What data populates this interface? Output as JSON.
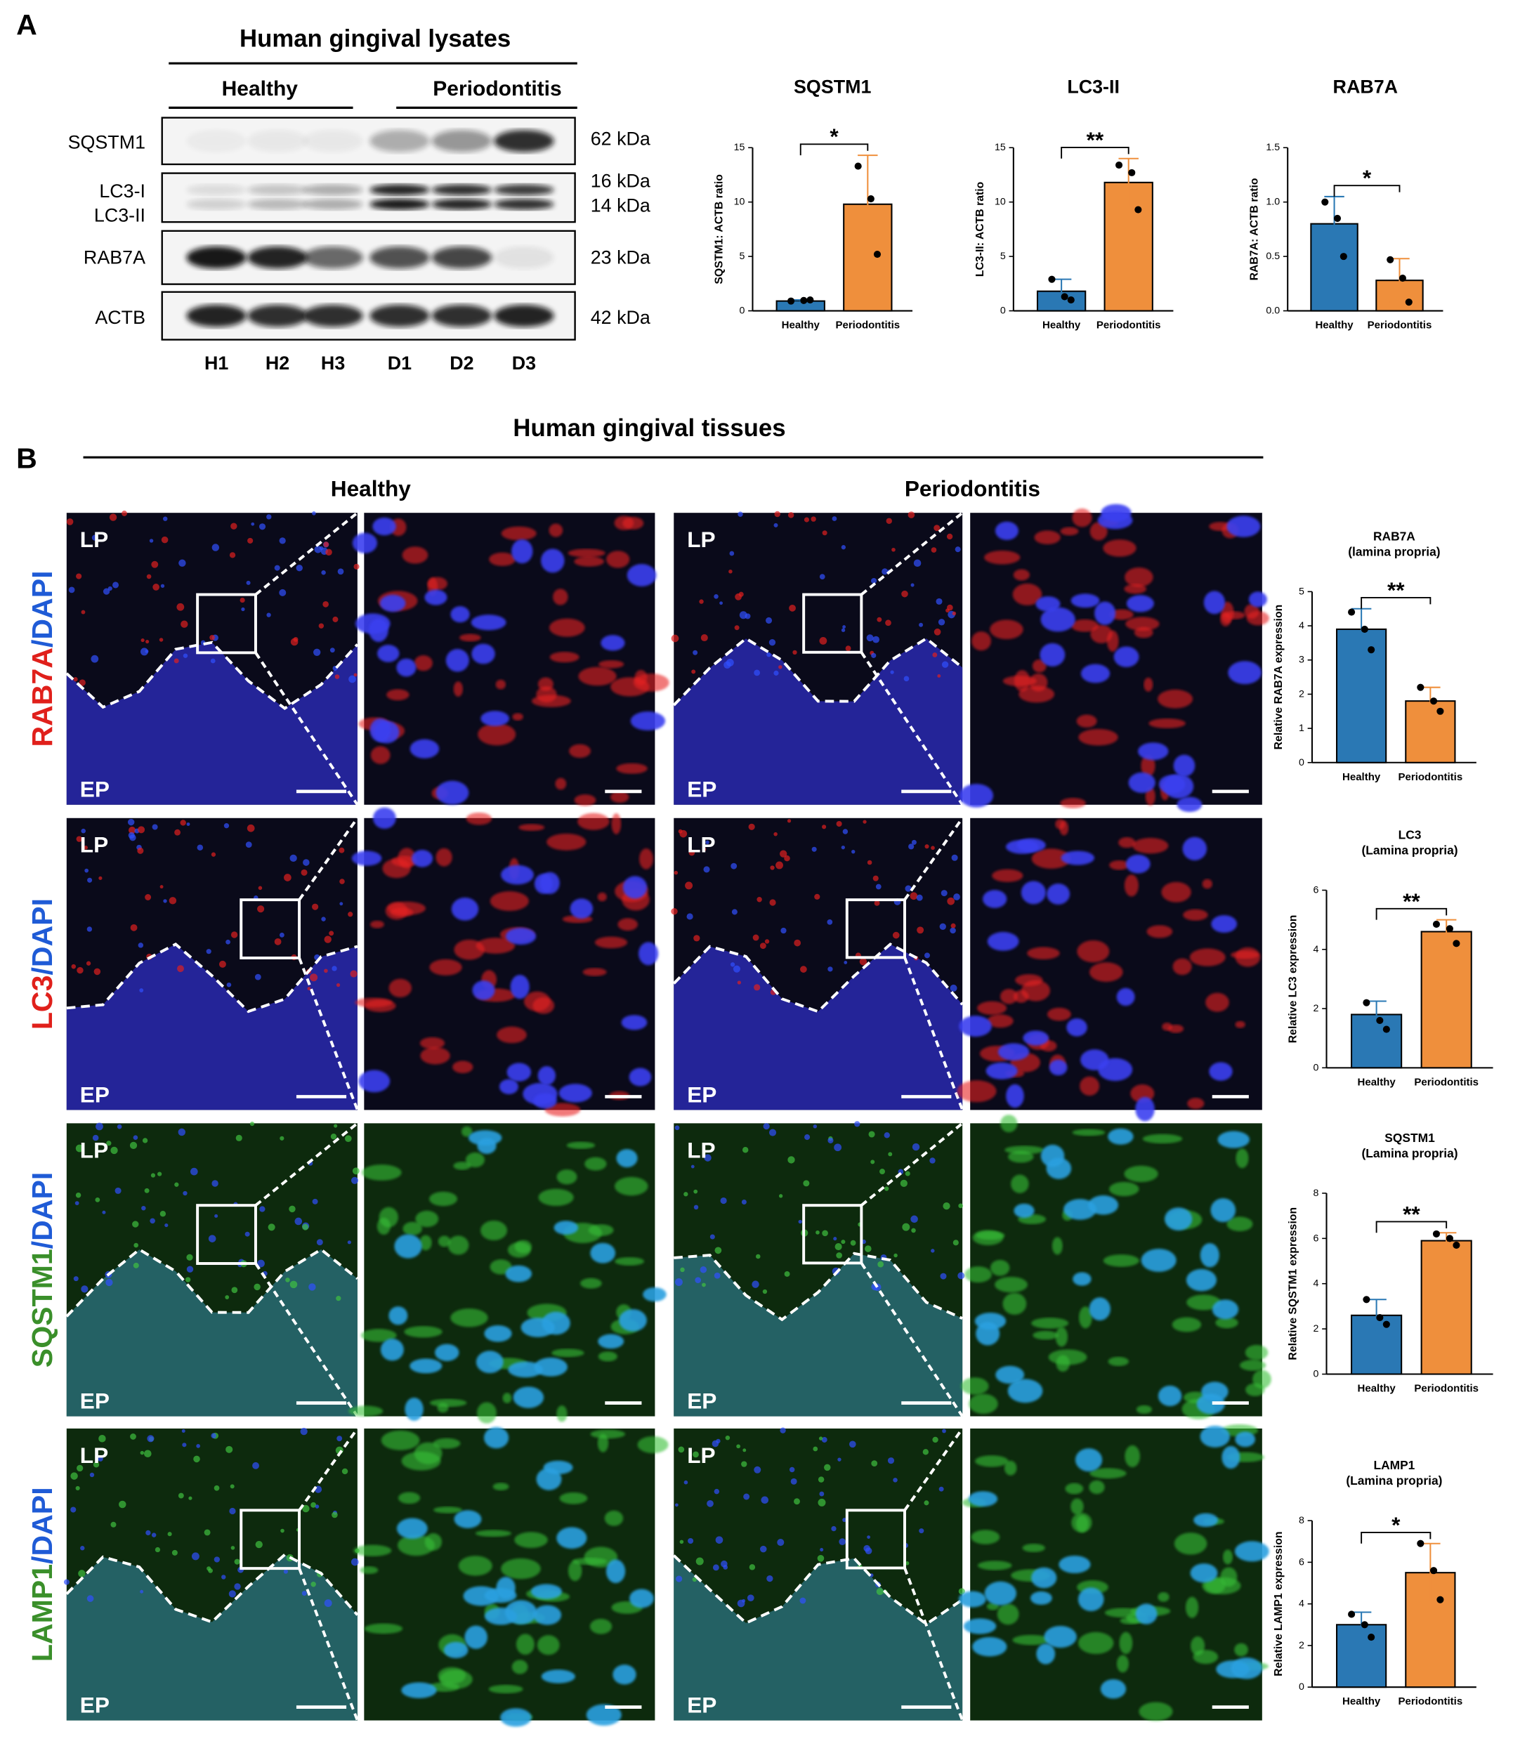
{
  "panel_a": {
    "label": "A",
    "title": "Human gingival lysates",
    "groups": [
      "Healthy",
      "Periodontitis"
    ],
    "blot_rows": [
      {
        "names": [
          "SQSTM1"
        ],
        "sizes": [
          "62 kDa"
        ]
      },
      {
        "names": [
          "LC3-I",
          "LC3-II"
        ],
        "sizes": [
          "16 kDa",
          "14 kDa"
        ]
      },
      {
        "names": [
          "RAB7A"
        ],
        "sizes": [
          "23 kDa"
        ]
      },
      {
        "names": [
          "ACTB"
        ],
        "sizes": [
          "42 kDa"
        ]
      }
    ],
    "lanes": [
      "H1",
      "H2",
      "H3",
      "D1",
      "D2",
      "D3"
    ]
  },
  "panel_b": {
    "label": "B",
    "title": "Human gingival tissues",
    "groups": [
      "Healthy",
      "Periodontitis"
    ],
    "counterstain": "/DAPI",
    "counterstain_color": "#1f5bd6",
    "regions": [
      "LP",
      "EP"
    ],
    "rows": [
      {
        "marker": "RAB7A",
        "color": "#e0201b"
      },
      {
        "marker": "LC3",
        "color": "#e0201b"
      },
      {
        "marker": "SQSTM1",
        "color": "#3a8f2a"
      },
      {
        "marker": "LAMP1",
        "color": "#3a8f2a"
      }
    ]
  },
  "chart_data": [
    {
      "type": "bar",
      "title": "SQSTM1",
      "ylabel": "SQSTM1: ACTB ratio",
      "categories": [
        "Healthy",
        "Periodontitis"
      ],
      "colors": [
        "#2a78b4",
        "#ef8f3c"
      ],
      "values": [
        0.9,
        9.8
      ],
      "errors": [
        0.1,
        4.5
      ],
      "points": [
        [
          0.9,
          0.95,
          1.0
        ],
        [
          13.3,
          10.3,
          5.2
        ]
      ],
      "ylim": [
        0,
        15
      ],
      "yticks": [
        0,
        5,
        10,
        15
      ],
      "significance": "*"
    },
    {
      "type": "bar",
      "title": "LC3-II",
      "ylabel": "LC3-II: ACTB ratio",
      "categories": [
        "Healthy",
        "Periodontitis"
      ],
      "colors": [
        "#2a78b4",
        "#ef8f3c"
      ],
      "values": [
        1.8,
        11.8
      ],
      "errors": [
        1.1,
        2.2
      ],
      "points": [
        [
          2.9,
          1.3,
          1.0
        ],
        [
          13.4,
          12.7,
          9.3
        ]
      ],
      "ylim": [
        0,
        15
      ],
      "yticks": [
        0,
        5,
        10,
        15
      ],
      "significance": "**"
    },
    {
      "type": "bar",
      "title": "RAB7A",
      "ylabel": "RAB7A: ACTB ratio",
      "categories": [
        "Healthy",
        "Periodontitis"
      ],
      "colors": [
        "#2a78b4",
        "#ef8f3c"
      ],
      "values": [
        0.8,
        0.28
      ],
      "errors": [
        0.25,
        0.2
      ],
      "points": [
        [
          1.0,
          0.85,
          0.5
        ],
        [
          0.47,
          0.3,
          0.08
        ]
      ],
      "ylim": [
        0,
        1.5
      ],
      "yticks": [
        {
          "value": 0,
          "label": "0.0"
        },
        0.5,
        {
          "value": 1,
          "label": "1.0"
        },
        1.5
      ],
      "significance": "*"
    },
    {
      "type": "bar",
      "title": "RAB7A",
      "subtitle": "(lamina propria)",
      "ylabel": "Relative RAB7A expression",
      "categories": [
        "Healthy",
        "Periodontitis"
      ],
      "colors": [
        "#2a78b4",
        "#ef8f3c"
      ],
      "values": [
        3.9,
        1.8
      ],
      "errors": [
        0.6,
        0.4
      ],
      "points": [
        [
          4.4,
          3.9,
          3.3
        ],
        [
          2.2,
          1.8,
          1.5
        ]
      ],
      "ylim": [
        0,
        5
      ],
      "yticks": [
        0,
        1,
        2,
        3,
        4,
        5
      ],
      "significance": "**"
    },
    {
      "type": "bar",
      "title": "LC3",
      "subtitle": "(Lamina propria)",
      "ylabel": "Relative LC3 expression",
      "categories": [
        "Healthy",
        "Periodontitis"
      ],
      "colors": [
        "#2a78b4",
        "#ef8f3c"
      ],
      "values": [
        1.8,
        4.6
      ],
      "errors": [
        0.45,
        0.4
      ],
      "points": [
        [
          2.2,
          1.6,
          1.3
        ],
        [
          4.85,
          4.7,
          4.2
        ]
      ],
      "ylim": [
        0,
        6
      ],
      "yticks": [
        0,
        2,
        4,
        6
      ],
      "significance": "**"
    },
    {
      "type": "bar",
      "title": "SQSTM1",
      "subtitle": "(Lamina propria)",
      "ylabel": "Relative SQSTM1 expression",
      "categories": [
        "Healthy",
        "Periodontitis"
      ],
      "colors": [
        "#2a78b4",
        "#ef8f3c"
      ],
      "values": [
        2.6,
        5.9
      ],
      "errors": [
        0.7,
        0.35
      ],
      "points": [
        [
          3.3,
          2.5,
          2.2
        ],
        [
          6.2,
          6.0,
          5.7
        ]
      ],
      "ylim": [
        0,
        8
      ],
      "yticks": [
        0,
        2,
        4,
        6,
        8
      ],
      "significance": "**"
    },
    {
      "type": "bar",
      "title": "LAMP1",
      "subtitle": "(Lamina propria)",
      "ylabel": "Relative LAMP1 expression",
      "categories": [
        "Healthy",
        "Periodontitis"
      ],
      "colors": [
        "#2a78b4",
        "#ef8f3c"
      ],
      "values": [
        3.0,
        5.5
      ],
      "errors": [
        0.6,
        1.4
      ],
      "points": [
        [
          3.5,
          3.0,
          2.4
        ],
        [
          6.9,
          5.6,
          4.2
        ]
      ],
      "ylim": [
        0,
        8
      ],
      "yticks": [
        0,
        2,
        4,
        6,
        8
      ],
      "significance": "*"
    }
  ]
}
